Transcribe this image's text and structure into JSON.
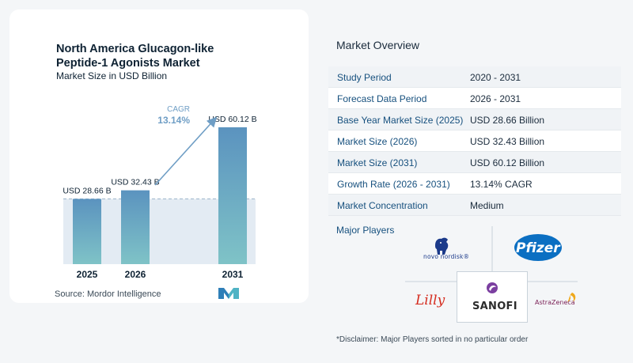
{
  "chart_data": {
    "type": "bar",
    "title": "North America Glucagon-like Peptide-1 Agonists Market",
    "subtitle": "Market Size in USD Billion",
    "categories": [
      "2025",
      "2026",
      "2031"
    ],
    "values": [
      28.66,
      32.43,
      60.12
    ],
    "value_labels": [
      "USD 28.66 B",
      "USD 32.43 B",
      "USD 60.12 B"
    ],
    "cagr_label": "CAGR",
    "cagr_value": "13.14%",
    "ylim": [
      0,
      66
    ],
    "grid": false,
    "legend": "none",
    "source": "Source:  Mordor Intelligence",
    "colors": {
      "bar_top": "#5b93bf",
      "bar_bottom": "#7fc3c7",
      "band": "#e3ebf3",
      "arrow": "#6f9ec5",
      "cagr": "#6f9ec5"
    }
  },
  "overview": {
    "title": "Market Overview",
    "rows": [
      {
        "label": "Study Period",
        "value": "2020 - 2031"
      },
      {
        "label": "Forecast Data Period",
        "value": "2026 - 2031"
      },
      {
        "label": "Base Year Market Size (2025)",
        "value": "USD 28.66 Billion"
      },
      {
        "label": "Market Size (2026)",
        "value": "USD 32.43 Billion"
      },
      {
        "label": "Market Size (2031)",
        "value": "USD 60.12 Billion"
      },
      {
        "label": "Growth Rate (2026 - 2031)",
        "value": "13.14% CAGR"
      },
      {
        "label": "Market Concentration",
        "value": "Medium"
      }
    ]
  },
  "players": {
    "title": "Major Players",
    "logos": [
      {
        "name": "novo-nordisk-logo",
        "text": "novo nordisk®"
      },
      {
        "name": "pfizer-logo",
        "text": "Pfizer"
      },
      {
        "name": "lilly-logo",
        "text": "Lilly"
      },
      {
        "name": "sanofi-logo",
        "text": "SANOFI"
      },
      {
        "name": "astrazeneca-logo",
        "text": "AstraZeneca"
      }
    ]
  },
  "disclaimer": "*Disclaimer: Major Players sorted in no particular order"
}
